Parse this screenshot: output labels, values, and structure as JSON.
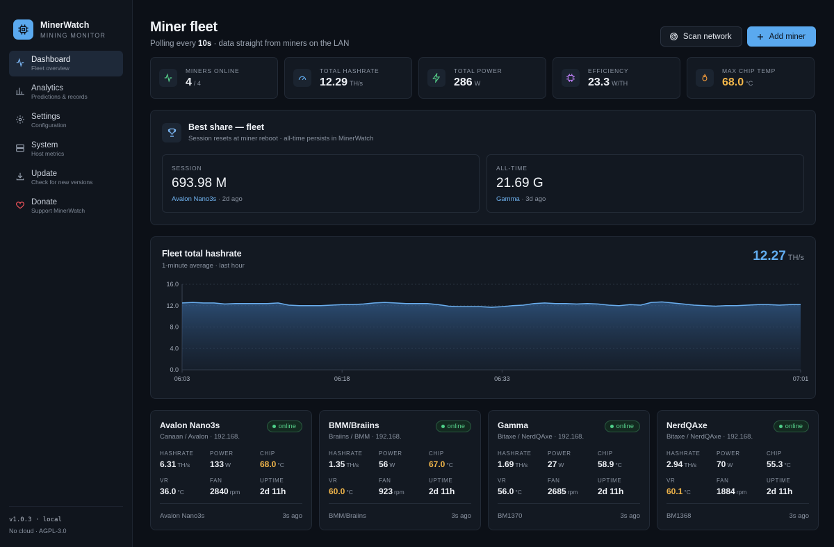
{
  "brand": {
    "name": "MinerWatch",
    "sub": "MINING MONITOR"
  },
  "nav": [
    {
      "label": "Dashboard",
      "sub": "Fleet overview",
      "icon": "activity-icon",
      "active": true
    },
    {
      "label": "Analytics",
      "sub": "Predictions & records",
      "icon": "chart-icon"
    },
    {
      "label": "Settings",
      "sub": "Configuration",
      "icon": "gear-icon"
    },
    {
      "label": "System",
      "sub": "Host metrics",
      "icon": "server-icon"
    },
    {
      "label": "Update",
      "sub": "Check for new versions",
      "icon": "download-icon"
    },
    {
      "label": "Donate",
      "sub": "Support MinerWatch",
      "icon": "heart-icon"
    }
  ],
  "footer": {
    "version": "v1.0.3 · local",
    "license": "No cloud · AGPL-3.0"
  },
  "header": {
    "title": "Miner fleet",
    "sub_prefix": "Polling every",
    "interval": "10s",
    "sub_suffix": "· data straight from miners on the LAN",
    "scan_label": "Scan network",
    "add_label": "Add miner"
  },
  "stats": [
    {
      "label": "MINERS ONLINE",
      "value": "4",
      "unit": "/ 4",
      "icon": "pulse-icon",
      "color": "#56d08a"
    },
    {
      "label": "TOTAL HASHRATE",
      "value": "12.29",
      "unit": "TH/s",
      "icon": "gauge-icon",
      "color": "#62adf0"
    },
    {
      "label": "TOTAL POWER",
      "value": "286",
      "unit": "W",
      "icon": "bolt-icon",
      "color": "#56d08a"
    },
    {
      "label": "EFFICIENCY",
      "value": "23.3",
      "unit": "W/TH",
      "icon": "chip-icon",
      "color": "#b97cf0"
    },
    {
      "label": "MAX CHIP TEMP",
      "value": "68.0",
      "unit": "°C",
      "icon": "flame-icon",
      "color": "#f29a3a",
      "warn": true
    }
  ],
  "best_share": {
    "title": "Best share — fleet",
    "sub": "Session resets at miner reboot · all-time persists in MinerWatch",
    "session": {
      "label": "SESSION",
      "value": "693.98 M",
      "miner": "Avalon Nano3s",
      "age": "· 2d ago"
    },
    "alltime": {
      "label": "ALL-TIME",
      "value": "21.69 G",
      "miner": "Gamma",
      "age": "· 3d ago"
    }
  },
  "chart": {
    "title": "Fleet total hashrate",
    "sub": "1-minute average · last hour",
    "current_value": "12.27",
    "current_unit": "TH/s"
  },
  "chart_data": {
    "type": "area",
    "title": "Fleet total hashrate",
    "ylim": [
      0,
      16
    ],
    "yticks": [
      "0.0",
      "4.0",
      "8.0",
      "12.0",
      "16.0"
    ],
    "yticks_values": [
      0,
      4,
      8,
      12,
      16
    ],
    "xticks": [
      "06:03",
      "06:18",
      "06:33",
      "07:01"
    ],
    "xticks_minutes": [
      0,
      15,
      30,
      58
    ],
    "grid": true,
    "series": [
      {
        "x_minutes": [
          0,
          1,
          2,
          3,
          4,
          5,
          6,
          7,
          8,
          9,
          10,
          11,
          12,
          13,
          14,
          15,
          16,
          17,
          18,
          19,
          20,
          21,
          22,
          23,
          24,
          25,
          26,
          27,
          28,
          29,
          30,
          31,
          32,
          33,
          34,
          35,
          36,
          37,
          38,
          39,
          40,
          41,
          42,
          43,
          44,
          45,
          46,
          47,
          48,
          49,
          50,
          51,
          52,
          53,
          54,
          55,
          56,
          57,
          58
        ],
        "values": [
          12.5,
          12.6,
          12.5,
          12.5,
          12.3,
          12.4,
          12.4,
          12.4,
          12.4,
          12.5,
          12.1,
          12.0,
          12.0,
          12.0,
          12.1,
          12.2,
          12.2,
          12.3,
          12.5,
          12.6,
          12.5,
          12.4,
          12.4,
          12.4,
          12.2,
          11.9,
          11.8,
          11.8,
          11.8,
          11.7,
          11.8,
          12.0,
          12.1,
          12.4,
          12.5,
          12.4,
          12.4,
          12.3,
          12.4,
          12.3,
          12.1,
          12.0,
          12.2,
          12.1,
          12.6,
          12.7,
          12.5,
          12.3,
          12.1,
          12.0,
          11.9,
          12.0,
          12.0,
          12.1,
          12.2,
          12.2,
          12.1,
          12.2,
          12.2
        ]
      }
    ]
  },
  "miner_labels": {
    "hashrate": "HASHRATE",
    "power": "POWER",
    "chip": "CHIP",
    "vr": "VR",
    "fan": "FAN",
    "uptime": "UPTIME"
  },
  "miners": [
    {
      "name": "Avalon Nano3s",
      "sub": "Canaan / Avalon · 192.168.",
      "status": "online",
      "hashrate": "6.31",
      "hash_unit": "TH/s",
      "power": "133",
      "power_unit": "W",
      "chip": "68.0",
      "chip_unit": "°C",
      "chip_warn": true,
      "vr": "36.0",
      "vr_unit": "°C",
      "vr_warn": false,
      "fan": "2840",
      "fan_unit": "rpm",
      "uptime": "2d 11h",
      "model": "Avalon Nano3s",
      "ago": "3s ago"
    },
    {
      "name": "BMM/Braiins",
      "sub": "Braiins / BMM · 192.168.",
      "status": "online",
      "hashrate": "1.35",
      "hash_unit": "TH/s",
      "power": "56",
      "power_unit": "W",
      "chip": "67.0",
      "chip_unit": "°C",
      "chip_warn": true,
      "vr": "60.0",
      "vr_unit": "°C",
      "vr_warn": true,
      "fan": "923",
      "fan_unit": "rpm",
      "uptime": "2d 11h",
      "model": "BMM/Braiins",
      "ago": "3s ago"
    },
    {
      "name": "Gamma",
      "sub": "Bitaxe / NerdQAxe · 192.168.",
      "status": "online",
      "hashrate": "1.69",
      "hash_unit": "TH/s",
      "power": "27",
      "power_unit": "W",
      "chip": "58.9",
      "chip_unit": "°C",
      "chip_warn": false,
      "vr": "56.0",
      "vr_unit": "°C",
      "vr_warn": false,
      "fan": "2685",
      "fan_unit": "rpm",
      "uptime": "2d 11h",
      "model": "BM1370",
      "ago": "3s ago"
    },
    {
      "name": "NerdQAxe",
      "sub": "Bitaxe / NerdQAxe · 192.168.",
      "status": "online",
      "hashrate": "2.94",
      "hash_unit": "TH/s",
      "power": "70",
      "power_unit": "W",
      "chip": "55.3",
      "chip_unit": "°C",
      "chip_warn": false,
      "vr": "60.1",
      "vr_unit": "°C",
      "vr_warn": true,
      "fan": "1884",
      "fan_unit": "rpm",
      "uptime": "2d 11h",
      "model": "BM1368",
      "ago": "3s ago"
    }
  ]
}
